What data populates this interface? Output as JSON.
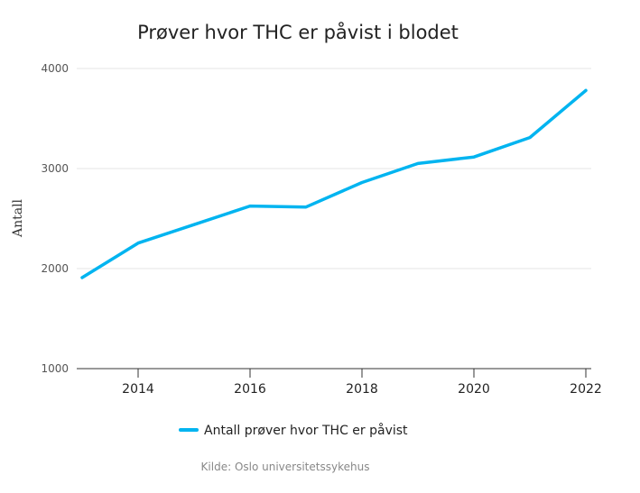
{
  "chart_data": {
    "type": "line",
    "title": "Prøver hvor THC er påvist i blodet",
    "xlabel": "",
    "ylabel": "Antall",
    "xlim": [
      2013,
      2022
    ],
    "ylim": [
      1000,
      4000
    ],
    "y_ticks": [
      "1000",
      "2000",
      "3000",
      "4000"
    ],
    "x_ticks": [
      "2014",
      "2016",
      "2018",
      "2020",
      "2022"
    ],
    "grid": true,
    "legend_position": "bottom-center",
    "series": [
      {
        "name": "Antall prøver hvor THC er påvist",
        "color": "#00b4f0",
        "x": [
          2013,
          2014,
          2015,
          2016,
          2017,
          2018,
          2019,
          2020,
          2021,
          2022
        ],
        "values": [
          1910,
          2255,
          2440,
          2625,
          2615,
          2860,
          3050,
          3115,
          3310,
          3780
        ]
      }
    ],
    "credit": "Kilde: Oslo universitetssykehus"
  }
}
